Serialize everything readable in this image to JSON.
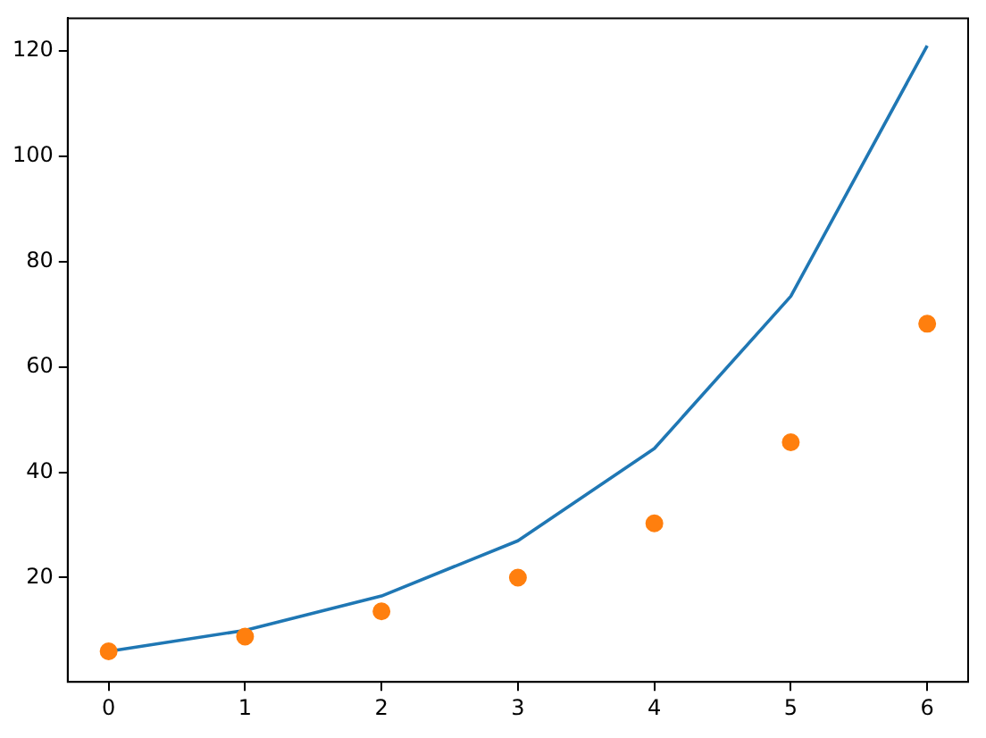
{
  "chart_data": {
    "type": "line",
    "x": [
      0,
      1,
      2,
      3,
      4,
      5,
      6
    ],
    "series": [
      {
        "type": "line",
        "color": "#1f77b4",
        "values": [
          6,
          10,
          16.5,
          27,
          44.5,
          73.4,
          121
        ],
        "marker": "none"
      },
      {
        "type": "scatter",
        "color": "#ff7f0e",
        "values": [
          6,
          8.8,
          13.6,
          20,
          30.3,
          45.7,
          68.2
        ],
        "marker": "circle"
      }
    ],
    "xlim": [
      -0.3,
      6.3
    ],
    "xticks": [
      0,
      1,
      2,
      3,
      4,
      5,
      6
    ],
    "ylim": [
      0.2,
      126.2
    ],
    "yticks": [
      20,
      40,
      60,
      80,
      100,
      120
    ],
    "grid": false,
    "legend": false
  }
}
